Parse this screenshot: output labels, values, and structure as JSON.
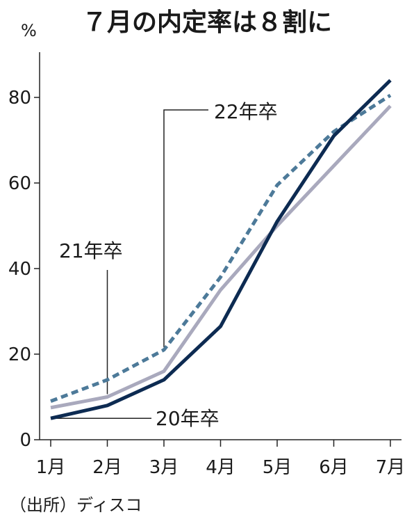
{
  "title": "７月の内定率は８割に",
  "source": "（出所）ディスコ",
  "chart_data": {
    "type": "line",
    "title": "７月の内定率は８割に",
    "ylabel": "%",
    "categories": [
      "1月",
      "2月",
      "3月",
      "4月",
      "5月",
      "6月",
      "7月"
    ],
    "ylim": [
      0,
      90
    ],
    "yticks": [
      "0",
      "20",
      "40",
      "60",
      "80"
    ],
    "grid": false,
    "series": [
      {
        "name": "20年卒",
        "values": [
          5,
          8,
          14,
          26.5,
          51,
          71,
          84
        ],
        "color": "#0d2b52",
        "style": "solid"
      },
      {
        "name": "21年卒",
        "values": [
          7.5,
          10,
          16,
          35,
          50,
          64,
          78
        ],
        "color": "#a9a9bd",
        "style": "solid"
      },
      {
        "name": "22年卒",
        "values": [
          9,
          14,
          21,
          38,
          59.5,
          72,
          80.5
        ],
        "color": "#4d7a99",
        "style": "dashed"
      }
    ]
  }
}
